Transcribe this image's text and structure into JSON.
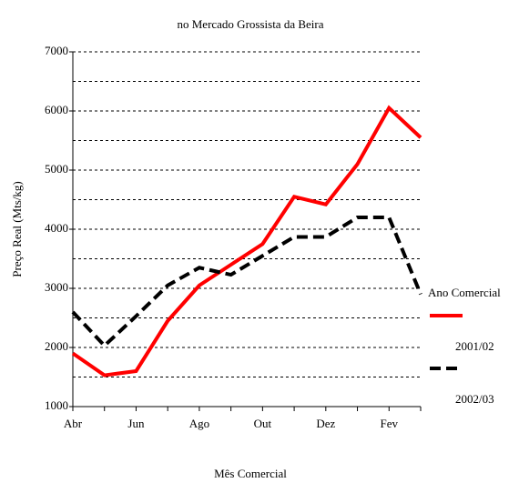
{
  "chart_data": {
    "type": "line",
    "title": "no Mercado Grossista da Beira",
    "x_label": "Mês Comercial",
    "y_label": "Preço Real (Mts/kg)",
    "legend_title": "Ano Comercial",
    "legend_position": "right",
    "categories": [
      "Abr",
      null,
      "Jun",
      null,
      "Ago",
      null,
      "Out",
      null,
      "Dez",
      null,
      "Fev",
      null
    ],
    "series": [
      {
        "name": "2001/02",
        "color": "#ff0000",
        "dash": false,
        "values": [
          1900,
          1530,
          1600,
          2450,
          3050,
          3400,
          3750,
          4550,
          4420,
          5100,
          6050,
          5550
        ]
      },
      {
        "name": "2002/03",
        "color": "#000000",
        "dash": true,
        "values": [
          2600,
          2030,
          2530,
          3050,
          3350,
          3230,
          3550,
          3870,
          3870,
          4200,
          4200,
          2900
        ]
      }
    ],
    "ylim": [
      1000,
      7000
    ],
    "yticks": [
      1000,
      2000,
      3000,
      4000,
      5000,
      6000,
      7000
    ],
    "yminor": [
      1500,
      2500,
      3500,
      4500,
      5500,
      6500
    ],
    "grid": true
  }
}
